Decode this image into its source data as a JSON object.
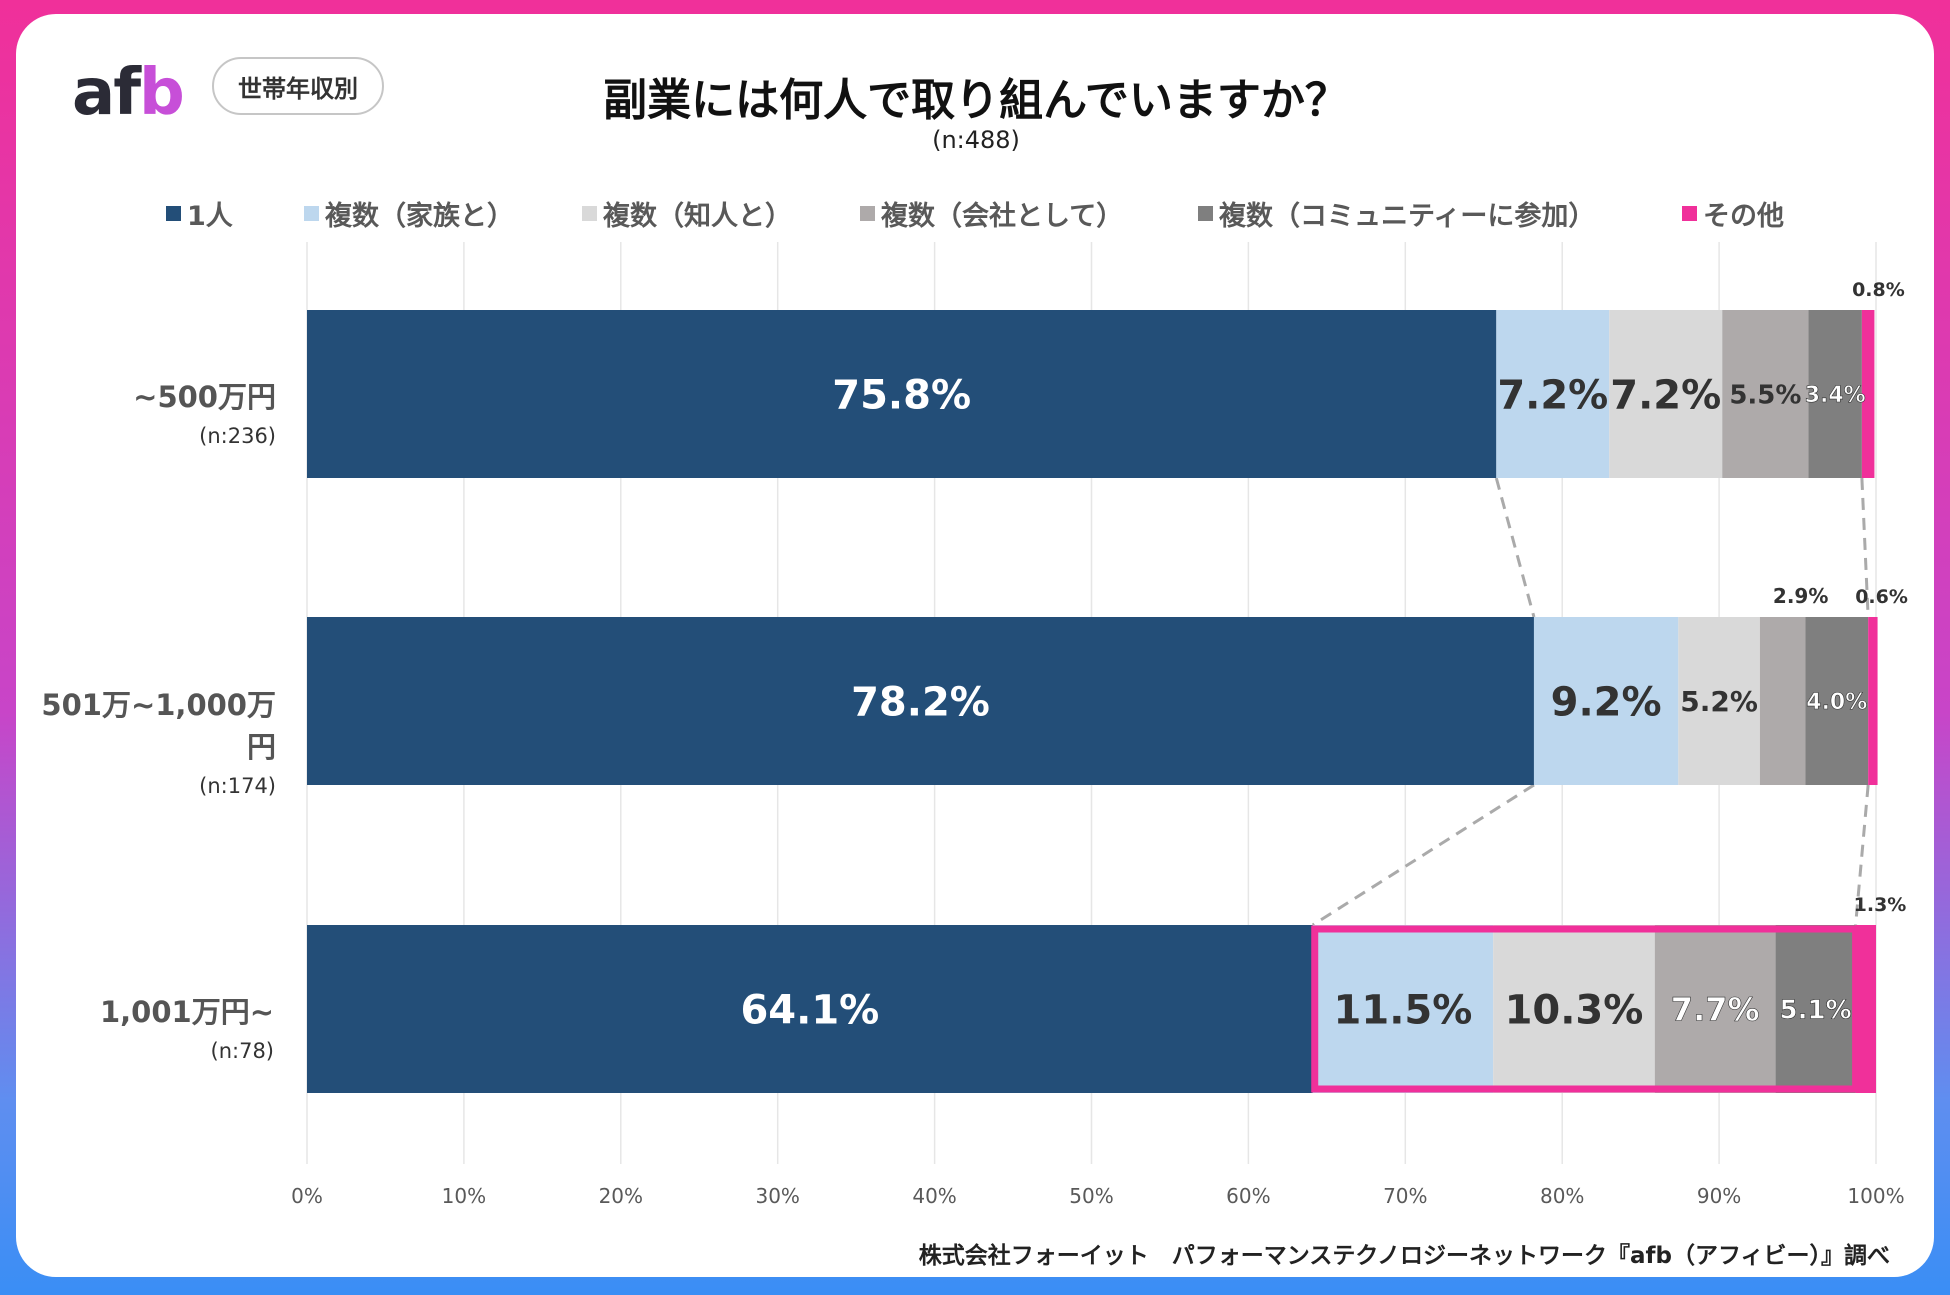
{
  "header": {
    "logo": {
      "prefix": "af",
      "suffix": "b"
    },
    "badge": "世帯年収別",
    "title": "副業には何人で取り組んでいますか？",
    "subtitle": "(n:488)"
  },
  "legend": [
    {
      "name": "1人",
      "color": "#234e78"
    },
    {
      "name": "複数（家族と）",
      "color": "#bdd7ee"
    },
    {
      "name": "複数（知人と）",
      "color": "#d9d9d9"
    },
    {
      "name": "複数（会社として）",
      "color": "#aeaaaa"
    },
    {
      "name": "複数（コミュニティーに参加）",
      "color": "#7f7f7f"
    },
    {
      "name": "その他",
      "color": "#f0309a"
    }
  ],
  "chart_data": {
    "type": "bar",
    "orientation": "horizontal",
    "stacked": true,
    "title": "副業には何人で取り組んでいますか？",
    "xlim": [
      0,
      100
    ],
    "x_ticks": [
      "0%",
      "10%",
      "20%",
      "30%",
      "40%",
      "50%",
      "60%",
      "70%",
      "80%",
      "90%",
      "100%"
    ],
    "grid": true,
    "categories": [
      {
        "label": "~500万円",
        "n": "(n:236)"
      },
      {
        "label": "501万~1,000万円",
        "n": "(n:174)"
      },
      {
        "label": "1,001万円~",
        "n": "(n:78)"
      }
    ],
    "series": [
      {
        "name": "1人",
        "values": [
          75.8,
          78.2,
          64.1
        ],
        "labels": [
          "75.8%",
          "78.2%",
          "64.1%"
        ]
      },
      {
        "name": "複数（家族と）",
        "values": [
          7.2,
          9.2,
          11.5
        ],
        "labels": [
          "7.2%",
          "9.2%",
          "11.5%"
        ]
      },
      {
        "name": "複数（知人と）",
        "values": [
          7.2,
          5.2,
          10.3
        ],
        "labels": [
          "7.2%",
          "5.2%",
          "10.3%"
        ]
      },
      {
        "name": "複数（会社として）",
        "values": [
          5.5,
          2.9,
          7.7
        ],
        "labels": [
          "5.5%",
          "2.9%",
          "7.7%"
        ]
      },
      {
        "name": "複数（コミュニティーに参加）",
        "values": [
          3.4,
          4.0,
          5.1
        ],
        "labels": [
          "3.4%",
          "4.0%",
          "5.1%"
        ]
      },
      {
        "name": "その他",
        "values": [
          0.8,
          0.6,
          1.3
        ],
        "labels": [
          "0.8%",
          "0.6%",
          "1.3%"
        ]
      }
    ],
    "highlight": {
      "category_index": 2,
      "from_series": 1,
      "to_series": 4
    }
  },
  "footer": "株式会社フォーイット　パフォーマンステクノロジーネットワーク『afb（アフィビー）』調べ"
}
